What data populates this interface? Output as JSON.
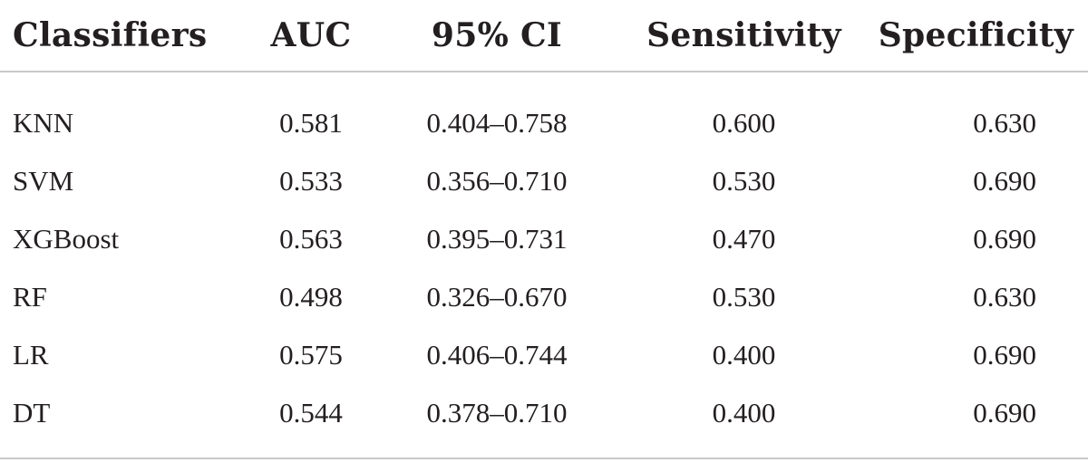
{
  "table": {
    "headers": [
      "Classifiers",
      "AUC",
      "95% CI",
      "Sensitivity",
      "Specificity"
    ],
    "rows": [
      [
        "KNN",
        "0.581",
        "0.404–0.758",
        "0.600",
        "0.630"
      ],
      [
        "SVM",
        "0.533",
        "0.356–0.710",
        "0.530",
        "0.690"
      ],
      [
        "XGBoost",
        "0.563",
        "0.395–0.731",
        "0.470",
        "0.690"
      ],
      [
        "RF",
        "0.498",
        "0.326–0.670",
        "0.530",
        "0.630"
      ],
      [
        "LR",
        "0.575",
        "0.406–0.744",
        "0.400",
        "0.690"
      ],
      [
        "DT",
        "0.544",
        "0.378–0.710",
        "0.400",
        "0.690"
      ]
    ]
  }
}
